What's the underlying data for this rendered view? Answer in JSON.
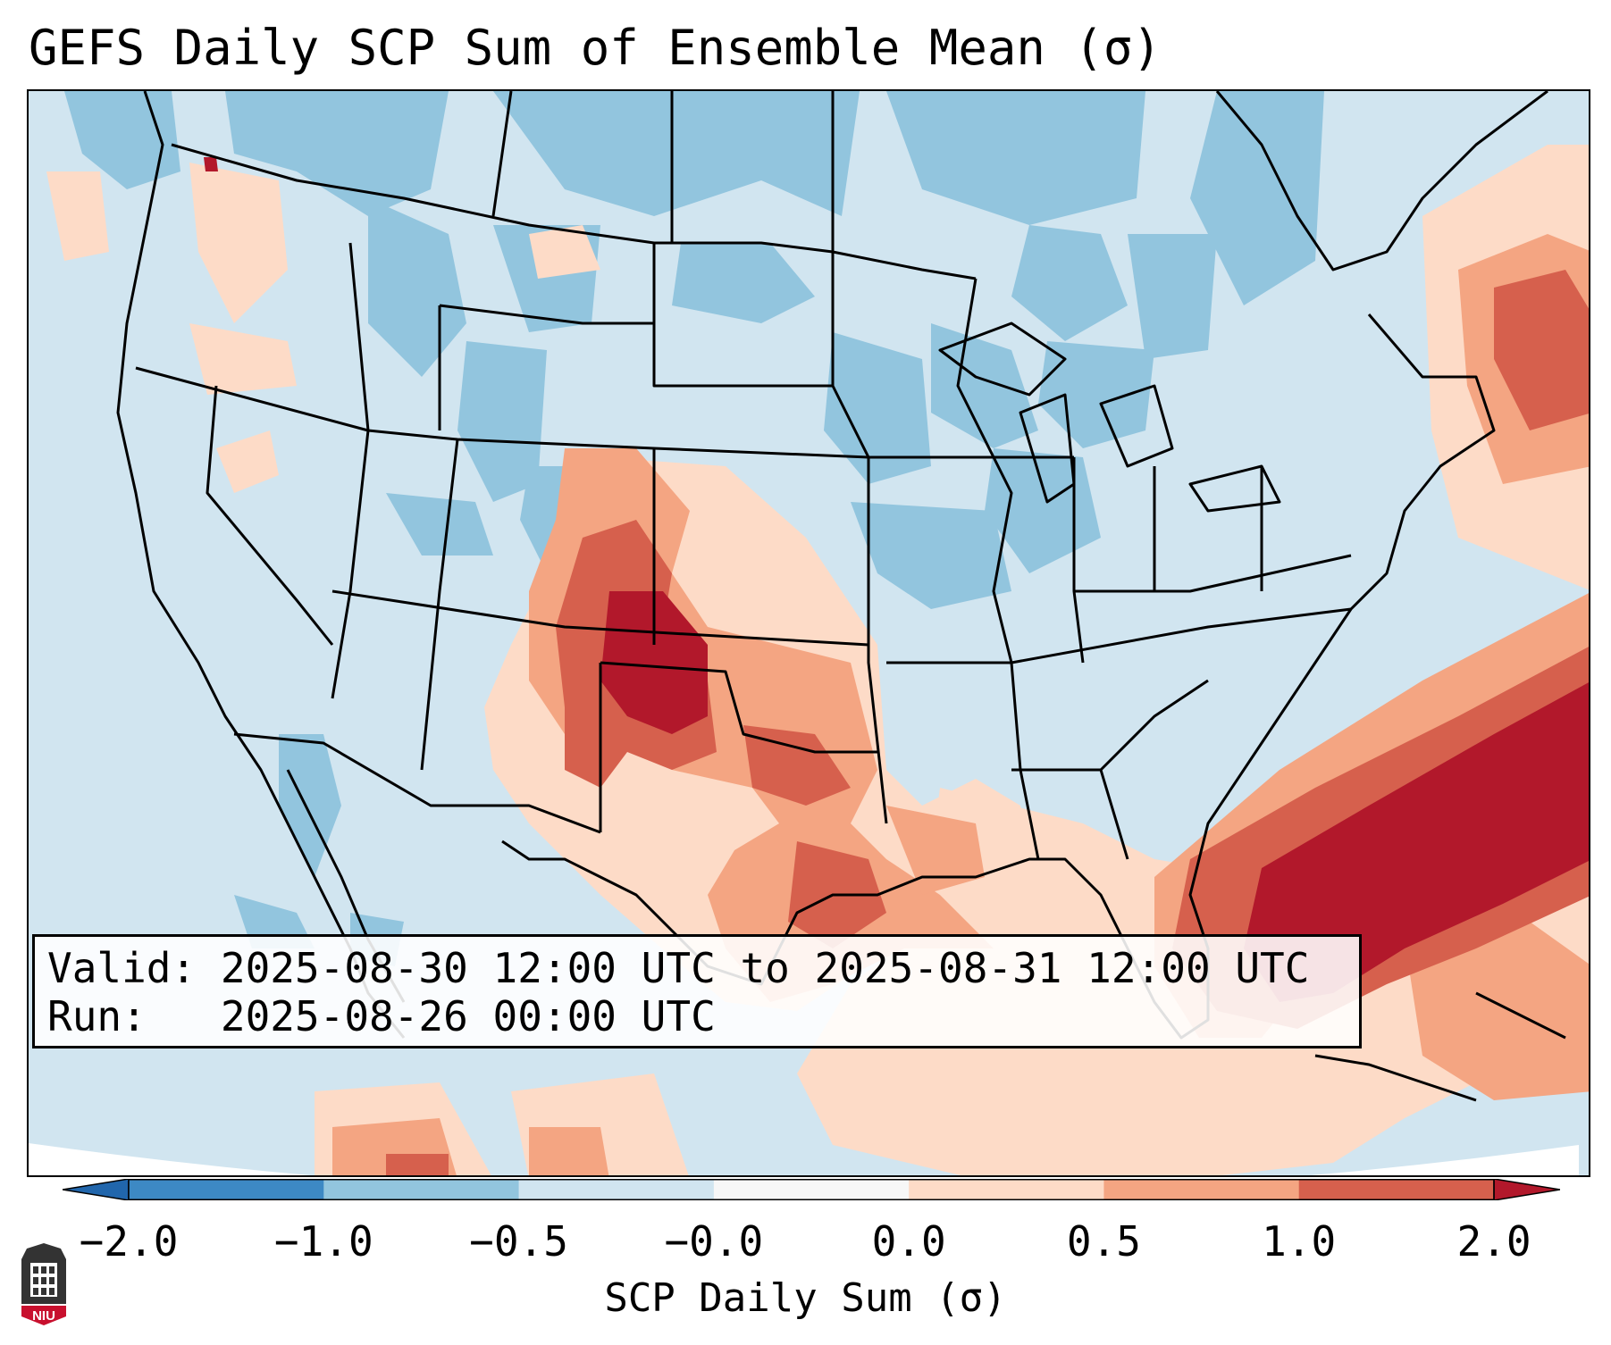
{
  "title": "GEFS Daily SCP Sum of Ensemble Mean (σ)",
  "info": {
    "valid_label": "Valid:",
    "valid_value": "2025-08-30 12:00 UTC to 2025-08-31 12:00 UTC",
    "run_label": "Run:",
    "run_value": "2025-08-26 00:00 UTC"
  },
  "colorbar": {
    "label": "SCP Daily Sum (σ)",
    "ticks": [
      "−2.0",
      "−1.0",
      "−0.5",
      "−0.0",
      "0.0",
      "0.5",
      "1.0",
      "2.0"
    ],
    "bins": [
      {
        "range": "-2.0 to -1.0",
        "color": "#3d89c4"
      },
      {
        "range": "-1.0 to -0.5",
        "color": "#92c5de"
      },
      {
        "range": "-0.5 to -0.0",
        "color": "#d1e5f0"
      },
      {
        "range": "-0.0 to 0.0",
        "color": "#f7f7f7"
      },
      {
        "range": "0.0 to 0.5",
        "color": "#fddbc7"
      },
      {
        "range": "0.5 to 1.0",
        "color": "#f4a582"
      },
      {
        "range": "1.0 to 2.0",
        "color": "#d6604d"
      },
      {
        "range": "above 2.0",
        "color": "#b2182b"
      }
    ],
    "extend_low_color": "#2166ac",
    "extend_high_color": "#b2182b"
  },
  "logo": {
    "text": "NIU"
  },
  "colors": {
    "ocean_bg": "#d6e8f2",
    "border": "#000000"
  }
}
